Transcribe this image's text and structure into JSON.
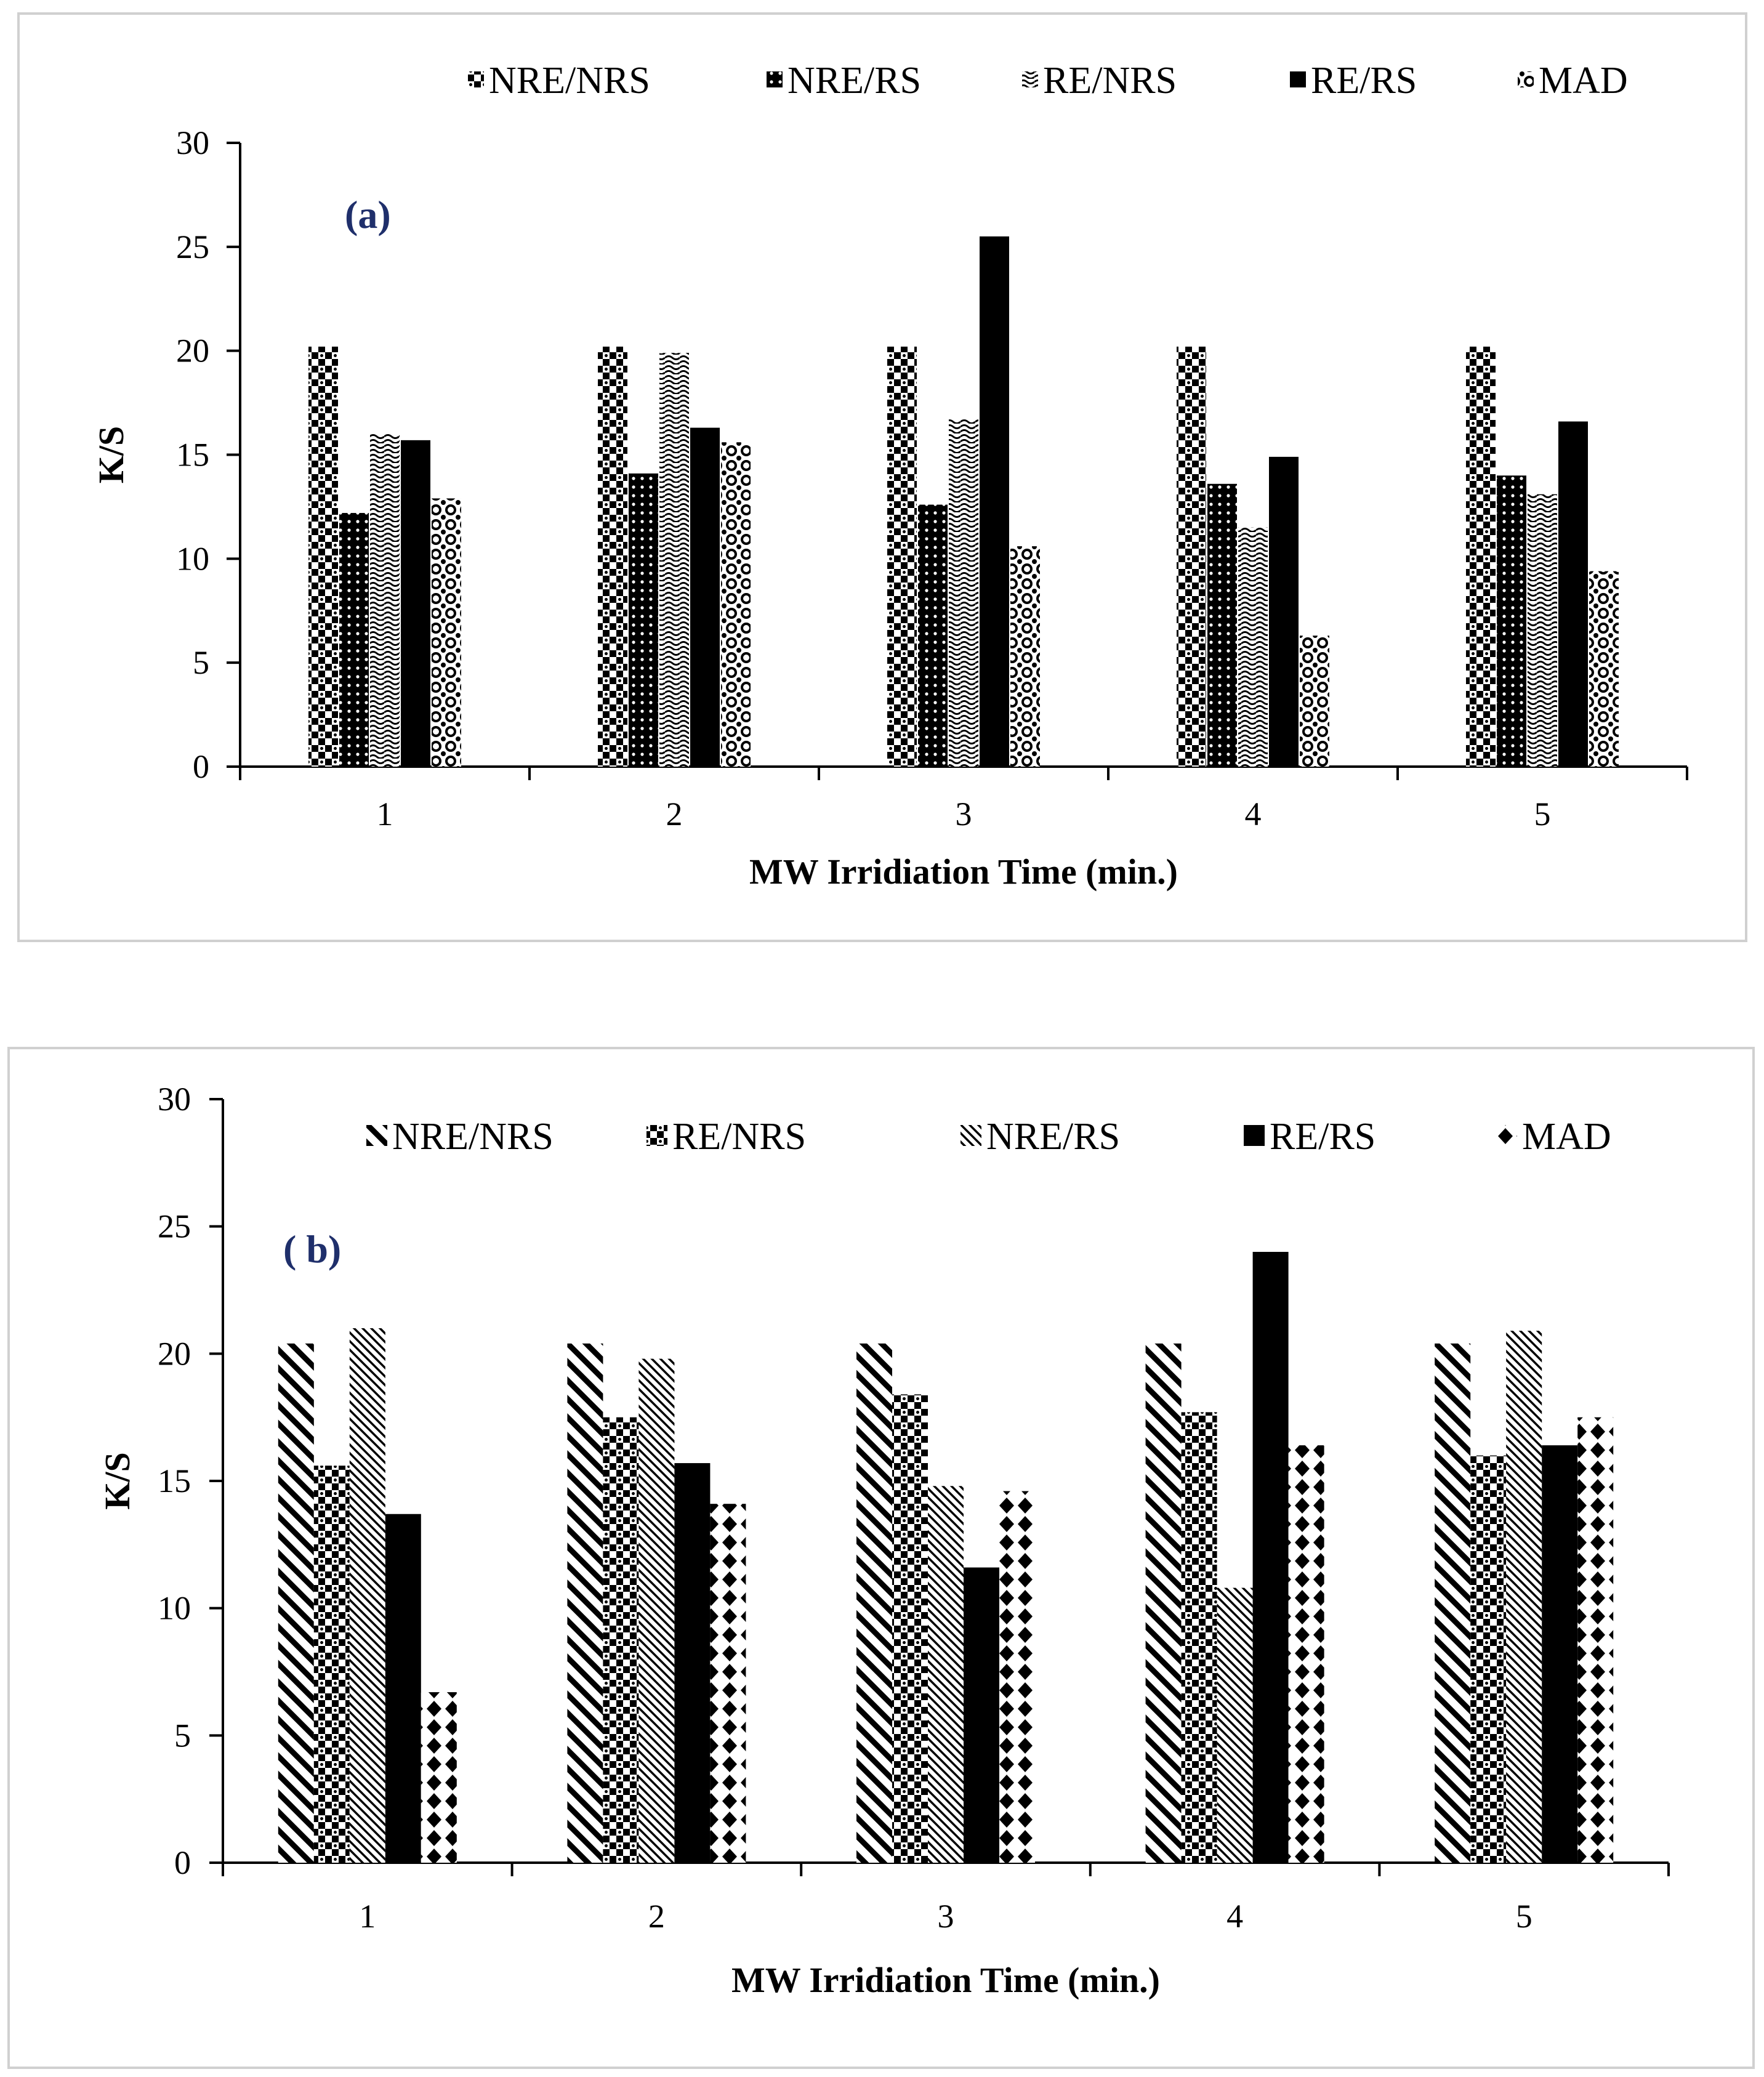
{
  "chart_data": [
    {
      "type": "bar",
      "panel_label": "(a)",
      "categories": [
        "1",
        "2",
        "3",
        "4",
        "5"
      ],
      "xlabel": "MW Irridiation  Time (min.)",
      "ylabel": "K/S",
      "ylim": [
        0,
        30
      ],
      "yticks": [
        "0",
        "5",
        "10",
        "15",
        "20",
        "25",
        "30"
      ],
      "legend_position": "top",
      "series": [
        {
          "name": "NRE/NRS",
          "pattern": "checker",
          "values": [
            20.2,
            20.2,
            20.2,
            20.2,
            20.2
          ]
        },
        {
          "name": "NRE/RS",
          "pattern": "dense-dots",
          "values": [
            12.2,
            14.1,
            12.6,
            13.6,
            14.0
          ]
        },
        {
          "name": "RE/NRS",
          "pattern": "waves",
          "values": [
            16.0,
            19.9,
            16.7,
            11.5,
            13.1
          ]
        },
        {
          "name": "RE/RS",
          "pattern": "solid",
          "values": [
            15.7,
            16.3,
            25.5,
            14.9,
            16.6
          ]
        },
        {
          "name": "MAD",
          "pattern": "circles",
          "values": [
            12.9,
            15.6,
            10.6,
            6.3,
            9.4
          ]
        }
      ]
    },
    {
      "type": "bar",
      "panel_label": "( b)",
      "categories": [
        "1",
        "2",
        "3",
        "4",
        "5"
      ],
      "xlabel": "MW Irridiation  Time (min.)",
      "ylabel": "K/S",
      "ylim": [
        0,
        30
      ],
      "yticks": [
        "0",
        "5",
        "10",
        "15",
        "20",
        "25",
        "30"
      ],
      "legend_position": "top",
      "series": [
        {
          "name": "NRE/NRS",
          "pattern": "wide-diagonal",
          "values": [
            20.4,
            20.4,
            20.4,
            20.4,
            20.4
          ]
        },
        {
          "name": "RE/NRS",
          "pattern": "checker",
          "values": [
            15.6,
            17.5,
            18.4,
            17.7,
            16.0
          ]
        },
        {
          "name": "NRE/RS",
          "pattern": "narrow-diagonal",
          "values": [
            21.0,
            19.8,
            14.8,
            10.8,
            20.9
          ]
        },
        {
          "name": "RE/RS",
          "pattern": "solid",
          "values": [
            13.7,
            15.7,
            11.6,
            24.0,
            16.4
          ]
        },
        {
          "name": "MAD",
          "pattern": "diamonds",
          "values": [
            6.7,
            14.1,
            14.6,
            16.4,
            17.5
          ]
        }
      ]
    }
  ]
}
